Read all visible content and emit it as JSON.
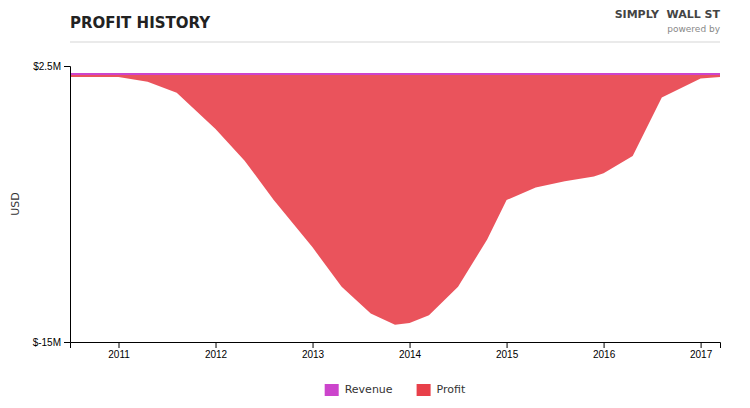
{
  "chart_data": {
    "type": "area",
    "title": "PROFIT HISTORY",
    "y_label": "USD",
    "annotations": [
      "SIMPLY  WALL ST",
      "powered by"
    ],
    "xlim": [
      2010.5,
      2017.2
    ],
    "ylim": [
      -15,
      2.5
    ],
    "xticks": [
      2011,
      2012,
      2013,
      2014,
      2015,
      2016,
      2017
    ],
    "yticks": [
      {
        "value": 2.5,
        "label": "$2.5M"
      },
      {
        "value": -15,
        "label": "$-15M"
      }
    ],
    "grid": false,
    "legend": "bottom",
    "series": [
      {
        "name": "Revenue",
        "type": "line",
        "color": "#cc44cc",
        "x": [
          2010.5,
          2011.0,
          2011.5,
          2012.0,
          2012.5,
          2013.0,
          2013.5,
          2014.0,
          2014.5,
          2015.0,
          2015.5,
          2016.0,
          2016.5,
          2017.0,
          2017.2
        ],
        "values": [
          2.0,
          2.0,
          2.0,
          2.0,
          2.0,
          2.0,
          2.0,
          2.0,
          2.0,
          2.0,
          2.0,
          2.0,
          2.0,
          2.0,
          2.0
        ]
      },
      {
        "name": "Profit",
        "type": "area",
        "color": "#e8404a",
        "x": [
          2010.5,
          2011.0,
          2011.3,
          2011.6,
          2012.0,
          2012.3,
          2012.6,
          2013.0,
          2013.3,
          2013.6,
          2013.85,
          2014.0,
          2014.2,
          2014.5,
          2014.8,
          2015.0,
          2015.3,
          2015.6,
          2015.9,
          2016.0,
          2016.3,
          2016.6,
          2017.0,
          2017.2
        ],
        "values": [
          1.8,
          1.8,
          1.5,
          0.8,
          -1.5,
          -3.5,
          -6.0,
          -9.0,
          -11.5,
          -13.2,
          -13.9,
          -13.8,
          -13.3,
          -11.5,
          -8.5,
          -6.0,
          -5.2,
          -4.8,
          -4.5,
          -4.3,
          -3.2,
          0.5,
          1.7,
          1.8
        ]
      }
    ]
  }
}
